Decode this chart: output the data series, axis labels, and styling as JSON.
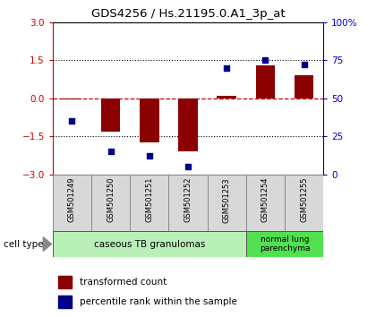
{
  "title": "GDS4256 / Hs.21195.0.A1_3p_at",
  "samples": [
    "GSM501249",
    "GSM501250",
    "GSM501251",
    "GSM501252",
    "GSM501253",
    "GSM501254",
    "GSM501255"
  ],
  "transformed_count": [
    -0.05,
    -1.3,
    -1.75,
    -2.1,
    0.1,
    1.3,
    0.9
  ],
  "percentile_rank": [
    35,
    15,
    12,
    5,
    70,
    75,
    72
  ],
  "ylim_left": [
    -3,
    3
  ],
  "ylim_right": [
    0,
    100
  ],
  "yticks_left": [
    -3,
    -1.5,
    0,
    1.5,
    3
  ],
  "yticks_right": [
    0,
    25,
    50,
    75,
    100
  ],
  "ytick_labels_right": [
    "0",
    "25",
    "50",
    "75",
    "100%"
  ],
  "bar_color": "#8B0000",
  "dot_color": "#00008B",
  "ref_line_color": "#CC0000",
  "dotted_line_color": "#000000",
  "group1_label": "caseous TB granulomas",
  "group2_label": "normal lung\nparenchyma",
  "group1_color": "#b8f0b8",
  "group2_color": "#50e050",
  "cell_type_label": "cell type",
  "legend_bar_label": "transformed count",
  "legend_dot_label": "percentile rank within the sample",
  "bar_width": 0.5,
  "sample_box_color": "#d8d8d8",
  "sample_box_edge": "#888888"
}
